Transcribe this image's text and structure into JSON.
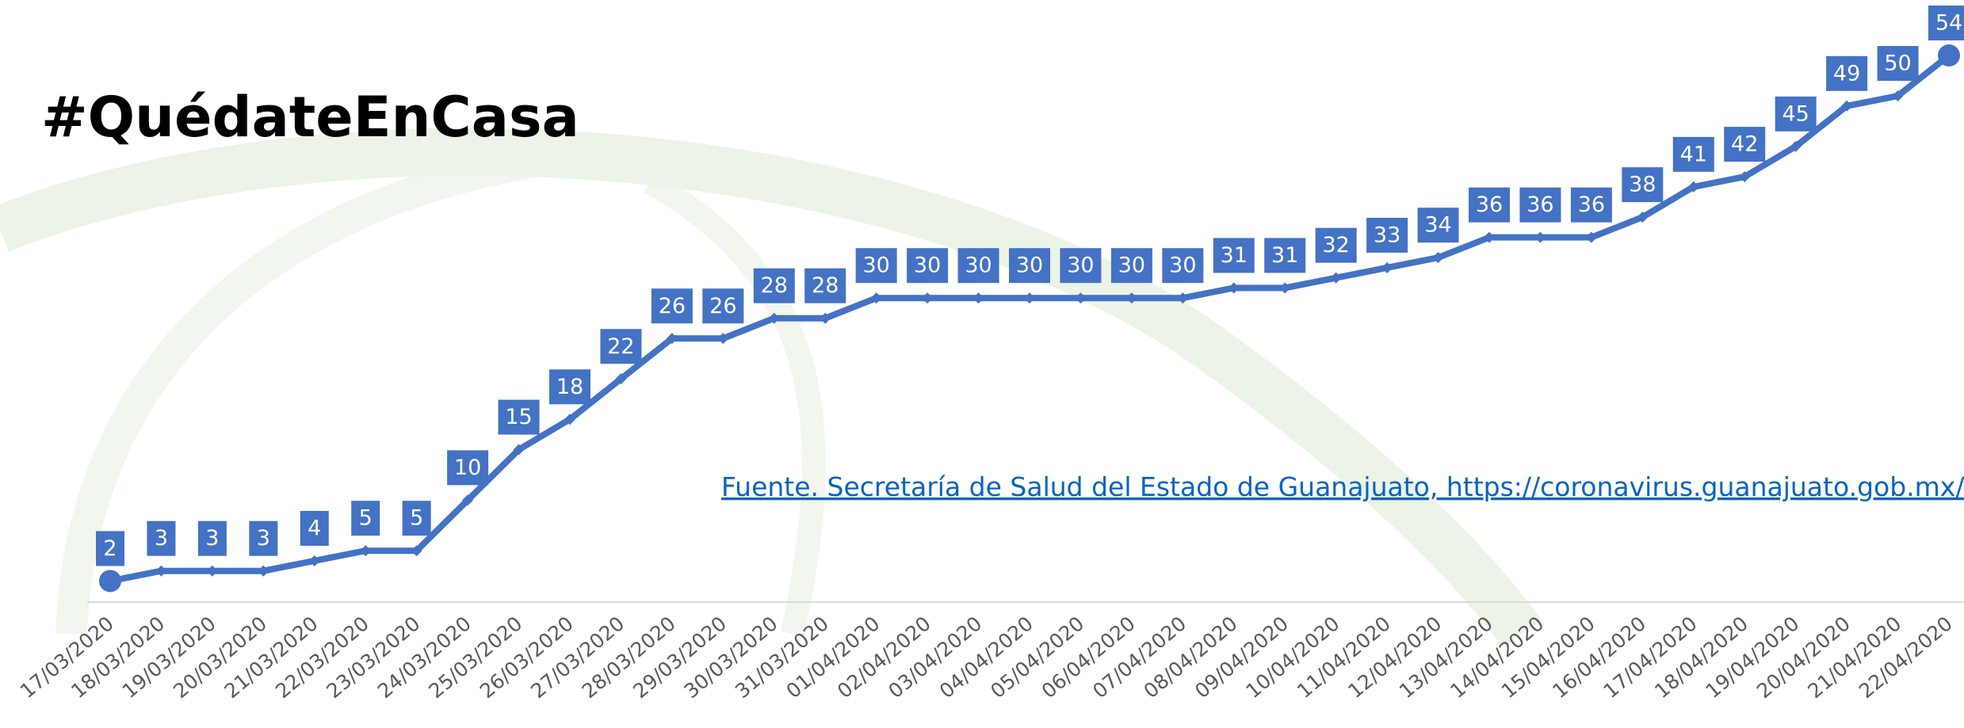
{
  "chart_data": {
    "type": "line",
    "title": "#QuédateEnCasa",
    "annotation": "Fuente. Secretaría de Salud del Estado de Guanajuato, https://coronavirus.guanajuato.gob.mx/",
    "categories": [
      "17/03/2020",
      "18/03/2020",
      "19/03/2020",
      "20/03/2020",
      "21/03/2020",
      "22/03/2020",
      "23/03/2020",
      "24/03/2020",
      "25/03/2020",
      "26/03/2020",
      "27/03/2020",
      "28/03/2020",
      "29/03/2020",
      "30/03/2020",
      "31/03/2020",
      "01/04/2020",
      "02/04/2020",
      "03/04/2020",
      "04/04/2020",
      "05/04/2020",
      "06/04/2020",
      "07/04/2020",
      "08/04/2020",
      "09/04/2020",
      "10/04/2020",
      "11/04/2020",
      "12/04/2020",
      "13/04/2020",
      "14/04/2020",
      "15/04/2020",
      "16/04/2020",
      "17/04/2020",
      "18/04/2020",
      "19/04/2020",
      "20/04/2020",
      "21/04/2020",
      "22/04/2020"
    ],
    "values": [
      2,
      3,
      3,
      3,
      4,
      5,
      5,
      10,
      15,
      18,
      22,
      26,
      26,
      28,
      28,
      30,
      30,
      30,
      30,
      30,
      30,
      30,
      31,
      31,
      32,
      33,
      34,
      36,
      36,
      36,
      38,
      41,
      42,
      45,
      49,
      50,
      54
    ],
    "color": "#4472c4"
  }
}
